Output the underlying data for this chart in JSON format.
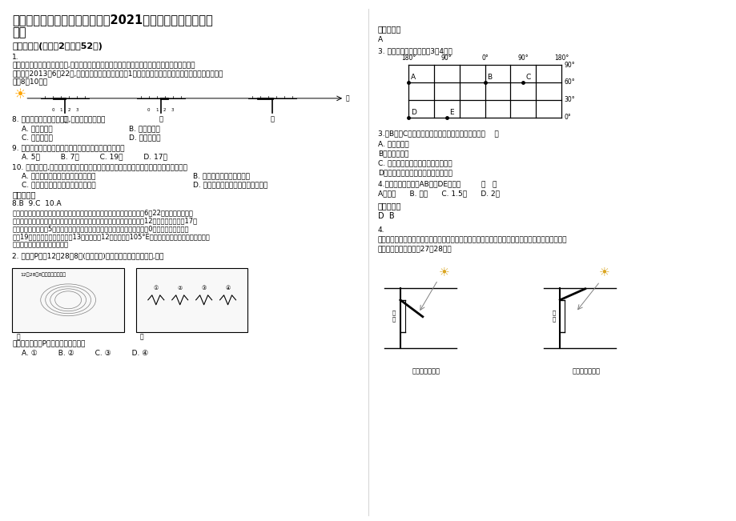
{
  "bg_color": "#ffffff",
  "title": "黑龙江省哈尔滨市呼兰第九中学2021年高三地理月考试题含解析",
  "title_line1": "黑龙江省哈尔滨市呼兰第九中学2021年高三地理月考试题含",
  "title_line2": "解析",
  "section1": "一、选择题(每小题2分，共52分)",
  "q1_intro_line1": "1.",
  "q1_intro_line2": "位于三个不同地区学校的学生,在国际互联网上合作设计了一个测量立杆影子长度的探究学习活动",
  "q1_intro_line3": "。他们于2013年6月22日,各自在当地正午前后，测量1米高立杆的影子长度，所得数据制成下图，据此",
  "q1_intro_line4": "完成8～10题。",
  "q8": "8. 甲、乙、丙三地该日昼长,由长到短的顺序是",
  "q8_A": "A. 甲、乙、丙",
  "q8_B": "B. 丙、甲、乙",
  "q8_C": "C. 乙、丙、甲",
  "q8_D": "D. 乙、甲、丙",
  "q9": "9. 当乙地测得该日杆影长最短时，丙地所在时区的区时是",
  "q9_A": "A. 5时",
  "q9_B": "B. 7时",
  "q9_C": "C. 19时",
  "q9_D": "D. 17时",
  "q10": "10. 甲图所示地,位于我国某省（区），下列对联或诗句中可反映该省（区）地理特征的是",
  "q10_A": "A. 清藻满池皎白远，苍茫海水何所宽",
  "q10_B": "B. 西藏天下象，游者无禁虞",
  "q10_C": "C. 刺桐西下八百里，漳海南来第一楼",
  "q10_D": "D. 一路柳烟鱼艇静，天涯海角好家乡",
  "ref1_title": "参考答案：",
  "ref1_line1": "8.B  9.C  10.A",
  "ref1_line2": "从影子朝向及长短可判断，乙在南半球，甲丙在北半球且丙的纬度高于甲。6月22日直射北半球，北",
  "ref1_line3": "半球昼长夜短，纬度越高昼越长，南半球昼短夜长；由图可知，丙的当地为12点时，北京时间为17点",
  "ref1_line4": "，丙地比北京时间晚5个小时，因此，乙地测得该日杆影长最短时北京时间为0点，图此，丙地为前",
  "ref1_line5": "一天19点，由图可知，北京时间13点时，甲地12点，甲地在105°E，而甲地正午投影子说明甲在北回",
  "ref1_line6": "归线上，甲地位于我国云南省。",
  "q2_intro": "2. 读我国P城市12月28日8时(北京时间)前后的相关天气象资料图,回答",
  "q2_map_label": "12月28日8时气压水平分布图",
  "q2_map_sub": "甲",
  "q2_map2_sub": "乙",
  "q2_question": "下图中将要影响P城的天气系统可能是",
  "q2_A": "A. ①",
  "q2_B": "B. ②",
  "q2_C": "C. ③",
  "q2_D": "D. ④",
  "right_title": "参考答案：",
  "right_A": "A",
  "right_q3_intro": "3. 读下面经纬网图，回答3～4题。",
  "grid_lon_labels": [
    "180°",
    "90°",
    "0°",
    "90°",
    "180°"
  ],
  "grid_lat_labels": [
    "90°",
    "60°",
    "30°",
    "0°"
  ],
  "q3_text": "3.从B地到C地，若不考虑地形因素，最近的走法是（    ）",
  "q3_A": "A. 一直向东走",
  "q3_B": "B．一直向西走",
  "q3_C": "C. 先向东南，再向东，最后向东北走",
  "q3_D": "D．先向东北，再向东，最后向东南走",
  "q4_text": "4.该经纬网图，纬线AB约是DE长度的         （   ）",
  "q4_A": "A．一半      B. 等长      C. 1.5倍      D. 2倍",
  "ref2_title": "参考答案：",
  "ref2_content": "D  B",
  "q4_section": "4.",
  "q4_intro_line1": "福建某中学研究性学习小组，设计了可调节窗户遮阳板，实现教室良好的遮阳与采光。下图示意遮阳",
  "q4_intro_line2": "板设计原理，据此回答27～28题。",
  "shield_label1": "遮阳板放下遮阳",
  "shield_label2": "遮阳板抬起采光",
  "divider_color": "#cccccc",
  "grid_color": "#000000"
}
